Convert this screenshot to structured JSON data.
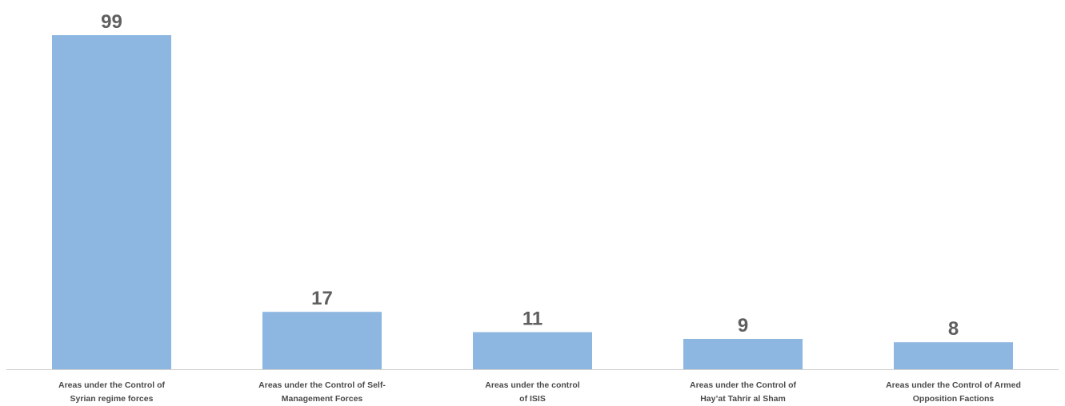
{
  "colors": {
    "bar": "#8db7e0",
    "axis": "#d0d0d0",
    "value_label": "#5f5f5f",
    "category_label": "#4a4a4a",
    "background": "#ffffff"
  },
  "chart_data": {
    "type": "bar",
    "title": "",
    "xlabel": "",
    "ylabel": "",
    "ylim": [
      0,
      99
    ],
    "grid": false,
    "legend": "none",
    "categories": [
      "Areas under the Control of Syrian regime forces",
      "Areas under the Control of Self-Management Forces",
      "Areas under the control of ISIS",
      "Areas under the Control of Hay'at Tahrir al Sham",
      "Areas under the Control of Armed Opposition Factions"
    ],
    "category_lines": [
      [
        "Areas under the Control of",
        "Syrian regime forces"
      ],
      [
        "Areas under the Control of Self-",
        "Management Forces"
      ],
      [
        "Areas under the control",
        "of ISIS"
      ],
      [
        "Areas under the Control of",
        "Hay’at Tahrir al Sham"
      ],
      [
        "Areas under the Control of Armed",
        "Opposition Factions"
      ]
    ],
    "values": [
      99,
      17,
      11,
      9,
      8
    ],
    "data_labels": [
      "99",
      "17",
      "11",
      "9",
      "8"
    ]
  }
}
